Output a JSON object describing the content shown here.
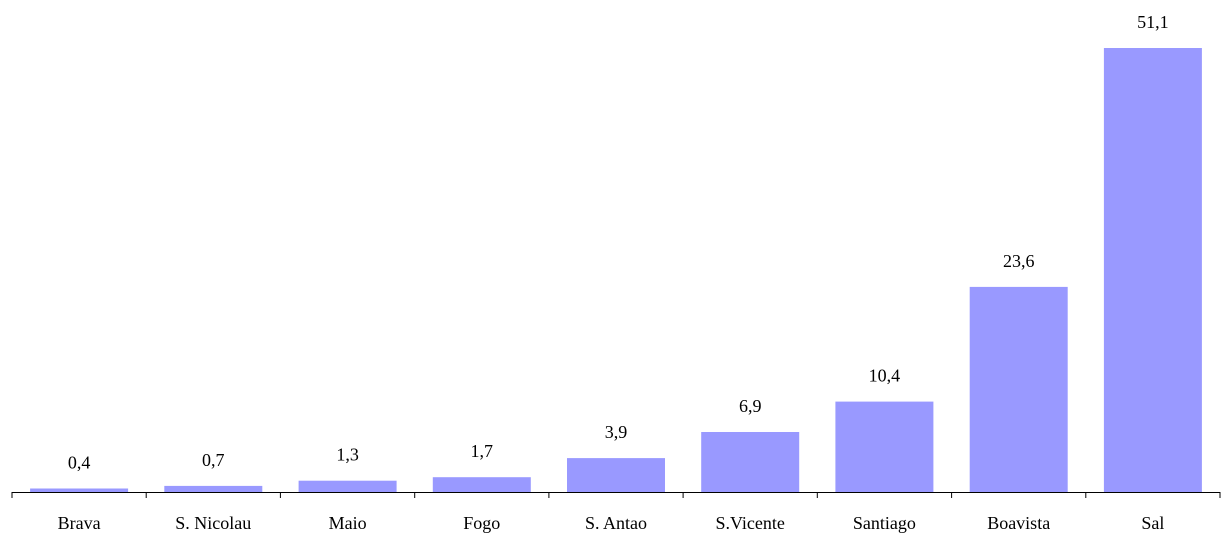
{
  "chart_data": {
    "type": "bar",
    "categories": [
      "Brava",
      "S. Nicolau",
      "Maio",
      "Fogo",
      "S. Antao",
      "S.Vicente",
      "Santiago",
      "Boavista",
      "Sal"
    ],
    "values": [
      0.4,
      0.7,
      1.3,
      1.7,
      3.9,
      6.9,
      10.4,
      23.6,
      51.1
    ],
    "value_labels": [
      "0,4",
      "0,7",
      "1,3",
      "1,7",
      "3,9",
      "6,9",
      "10,4",
      "23,6",
      "51,1"
    ],
    "title": "",
    "xlabel": "",
    "ylabel": "",
    "ylim": [
      0,
      51.1
    ],
    "grid": false,
    "legend": "none",
    "bar_color": "#9999ff"
  }
}
